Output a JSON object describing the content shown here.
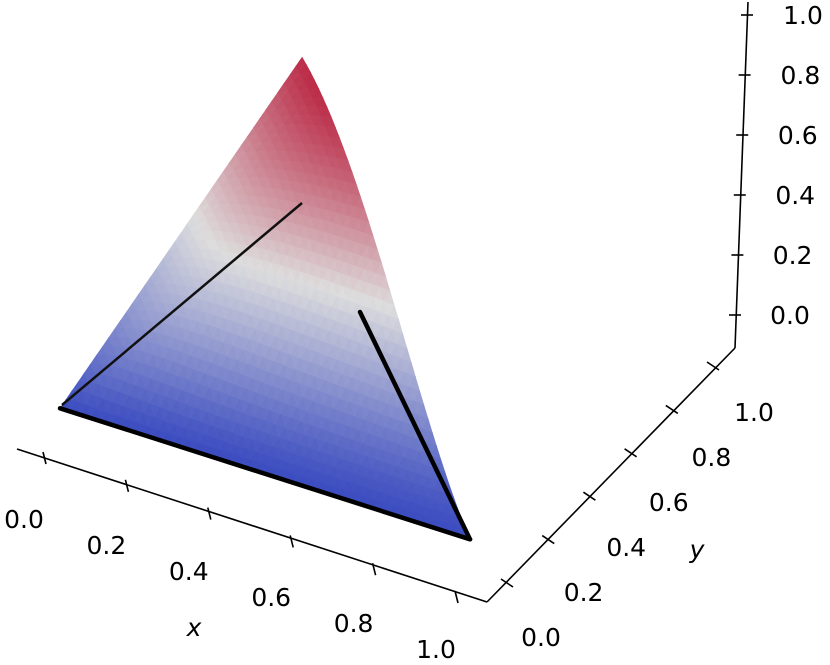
{
  "chart_data": {
    "type": "surface",
    "title": "",
    "xlabel": "x",
    "ylabel": "y",
    "zlabel": "",
    "x_ticks": [
      "0.0",
      "0.2",
      "0.4",
      "0.6",
      "0.8",
      "1.0"
    ],
    "y_ticks": [
      "0.0",
      "0.2",
      "0.4",
      "0.6",
      "0.8",
      "1.0"
    ],
    "z_ticks": [
      "0.0",
      "0.2",
      "0.4",
      "0.6",
      "0.8",
      "1.0"
    ],
    "xlim": [
      0,
      1
    ],
    "ylim": [
      0,
      1
    ],
    "zlim": [
      -0.08,
      1.08
    ],
    "colormap": [
      "#3b4cc0",
      "#dddddd",
      "#b40426"
    ],
    "surface_domain": "triangle with vertices (0,0), (1,0), (0,1)",
    "surface_corner_values": [
      {
        "x": 0,
        "y": 0,
        "z": 0.0
      },
      {
        "x": 1,
        "y": 0,
        "z": 0.0
      },
      {
        "x": 0,
        "y": 1,
        "z": 0.56
      },
      {
        "x": 0.5,
        "y": 0.5,
        "z": 0.62
      }
    ],
    "edge_color": "#000000",
    "grid": false
  }
}
